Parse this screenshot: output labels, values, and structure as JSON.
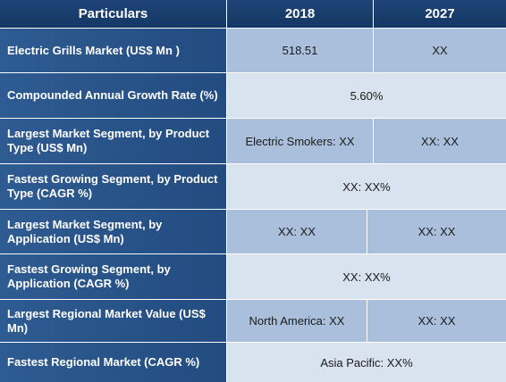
{
  "header": {
    "col1": "Particulars",
    "col2": "2018",
    "col3": "2027"
  },
  "rows": [
    {
      "label": "Electric Grills Market (US$ Mn )",
      "v2018": "518.51",
      "v2027": "XX"
    },
    {
      "label": "Compounded Annual Growth Rate (%)",
      "merged": "5.60%"
    },
    {
      "label": "Largest Market Segment, by Product Type (US$ Mn)",
      "v2018": "Electric Smokers: XX",
      "v2027": "XX: XX"
    },
    {
      "label": "Fastest Growing Segment, by Product Type (CAGR %)",
      "merged": "XX: XX%"
    },
    {
      "label": "Largest Market Segment, by Application (US$ Mn)",
      "v2018": "XX: XX",
      "v2027": "XX: XX"
    },
    {
      "label": "Fastest Growing Segment, by Application (CAGR %)",
      "merged": "XX: XX%"
    },
    {
      "label": "Largest Regional Market Value (US$ Mn)",
      "v2018": "North America: XX",
      "v2027": "XX: XX"
    },
    {
      "label": "Fastest Regional Market (CAGR %)",
      "merged": "Asia Pacific: XX%"
    }
  ]
}
